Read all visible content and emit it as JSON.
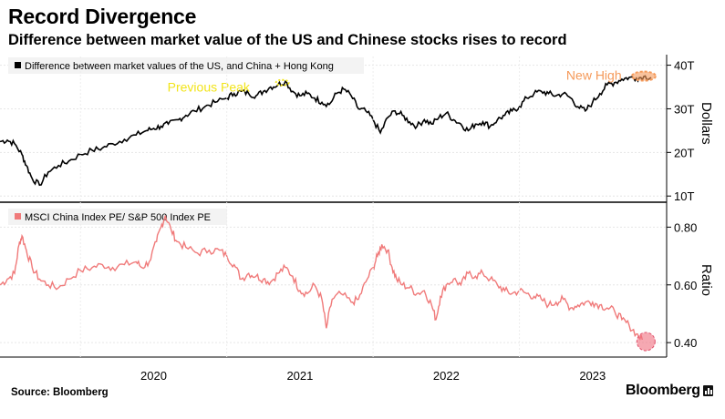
{
  "title": "Record Divergence",
  "subtitle": "Difference between market value of the US and Chinese stocks rises to record",
  "source": "Source: Bloomberg",
  "brand": "Bloomberg",
  "colors": {
    "top_series": "#000000",
    "bottom_series": "#f07a7a",
    "previous_peak": "#f2e41a",
    "new_high": "#f59a5a",
    "highlight_circle": "#f06e7e"
  },
  "chart_data": [
    {
      "type": "line",
      "title": "Difference between market values of the US, and China + Hong Kong",
      "legend": "Difference between market values of the US, and China + Hong Kong",
      "ylabel": "Dollars",
      "yticks": [
        "10T",
        "20T",
        "30T",
        "40T"
      ],
      "ytick_values": [
        10,
        20,
        30,
        40
      ],
      "ylim": [
        9,
        42
      ],
      "xlim": [
        2019.45,
        2024.0
      ],
      "annotations": [
        {
          "label": "Previous Peak",
          "x": 2021.38,
          "y": 36.0
        },
        {
          "label": "New High",
          "x": 2023.85,
          "y": 37.5
        }
      ],
      "x": [
        2019.45,
        2019.5,
        2019.55,
        2019.6,
        2019.63,
        2019.67,
        2019.72,
        2019.78,
        2019.85,
        2019.92,
        2020.0,
        2020.08,
        2020.15,
        2020.22,
        2020.3,
        2020.38,
        2020.45,
        2020.5,
        2020.55,
        2020.6,
        2020.67,
        2020.72,
        2020.78,
        2020.85,
        2020.92,
        2021.0,
        2021.05,
        2021.1,
        2021.15,
        2021.2,
        2021.25,
        2021.3,
        2021.35,
        2021.4,
        2021.45,
        2021.5,
        2021.55,
        2021.6,
        2021.65,
        2021.7,
        2021.75,
        2021.8,
        2021.85,
        2021.9,
        2021.95,
        2022.0,
        2022.05,
        2022.1,
        2022.15,
        2022.2,
        2022.25,
        2022.3,
        2022.35,
        2022.4,
        2022.45,
        2022.5,
        2022.55,
        2022.6,
        2022.65,
        2022.7,
        2022.75,
        2022.8,
        2022.85,
        2022.9,
        2022.95,
        2023.0,
        2023.05,
        2023.1,
        2023.15,
        2023.2,
        2023.25,
        2023.3,
        2023.35,
        2023.4,
        2023.45,
        2023.5,
        2023.55,
        2023.6,
        2023.65,
        2023.7,
        2023.75,
        2023.8,
        2023.85,
        2023.9
      ],
      "values": [
        22.5,
        22.8,
        22.0,
        19.5,
        17.0,
        14.0,
        12.5,
        15.5,
        17.0,
        18.0,
        19.5,
        20.5,
        21.0,
        22.0,
        23.0,
        24.0,
        25.0,
        25.5,
        26.0,
        26.5,
        27.5,
        28.5,
        29.5,
        30.5,
        31.5,
        32.5,
        33.5,
        34.0,
        33.5,
        33.0,
        34.0,
        35.0,
        35.5,
        36.3,
        34.0,
        33.0,
        33.5,
        32.5,
        31.5,
        31.0,
        33.5,
        34.5,
        33.0,
        30.0,
        29.5,
        27.5,
        24.5,
        28.0,
        29.5,
        28.5,
        27.0,
        26.0,
        27.5,
        26.5,
        28.0,
        29.0,
        27.5,
        26.5,
        25.0,
        26.5,
        27.0,
        26.0,
        27.5,
        28.5,
        29.5,
        30.5,
        32.5,
        33.5,
        34.0,
        33.5,
        33.0,
        33.5,
        32.5,
        30.5,
        29.5,
        31.5,
        33.5,
        35.5,
        36.0,
        36.8,
        37.2,
        37.0,
        37.4,
        37.2
      ]
    },
    {
      "type": "line",
      "title": "MSCI China Index PE/ S&P 500 Index PE",
      "legend": "MSCI China Index PE/ S&P 500 Index PE",
      "ylabel": "Ratio",
      "yticks": [
        "0.40",
        "0.60",
        "0.80"
      ],
      "ytick_values": [
        0.4,
        0.6,
        0.8
      ],
      "ylim": [
        0.35,
        0.88
      ],
      "xlim": [
        2019.45,
        2024.0
      ],
      "xticks": [
        "2020",
        "2021",
        "2022",
        "2023"
      ],
      "xtick_values": [
        2020.0,
        2021.0,
        2022.0,
        2023.0
      ],
      "x": [
        2019.45,
        2019.5,
        2019.55,
        2019.58,
        2019.6,
        2019.63,
        2019.67,
        2019.72,
        2019.78,
        2019.85,
        2019.92,
        2020.0,
        2020.08,
        2020.15,
        2020.22,
        2020.3,
        2020.38,
        2020.42,
        2020.47,
        2020.52,
        2020.55,
        2020.58,
        2020.62,
        2020.66,
        2020.72,
        2020.8,
        2020.88,
        2020.95,
        2021.0,
        2021.05,
        2021.1,
        2021.15,
        2021.2,
        2021.25,
        2021.3,
        2021.35,
        2021.4,
        2021.45,
        2021.5,
        2021.55,
        2021.6,
        2021.65,
        2021.68,
        2021.72,
        2021.78,
        2021.85,
        2021.9,
        2021.95,
        2022.0,
        2022.03,
        2022.06,
        2022.1,
        2022.13,
        2022.16,
        2022.2,
        2022.25,
        2022.3,
        2022.35,
        2022.4,
        2022.43,
        2022.46,
        2022.5,
        2022.55,
        2022.6,
        2022.65,
        2022.7,
        2022.75,
        2022.8,
        2022.85,
        2022.9,
        2022.95,
        2023.0,
        2023.05,
        2023.1,
        2023.15,
        2023.2,
        2023.25,
        2023.3,
        2023.35,
        2023.4,
        2023.45,
        2023.5,
        2023.55,
        2023.6,
        2023.65,
        2023.7,
        2023.75,
        2023.8,
        2023.84
      ],
      "values": [
        0.6,
        0.62,
        0.64,
        0.74,
        0.77,
        0.72,
        0.66,
        0.62,
        0.6,
        0.59,
        0.62,
        0.65,
        0.66,
        0.67,
        0.66,
        0.67,
        0.68,
        0.66,
        0.68,
        0.75,
        0.8,
        0.84,
        0.79,
        0.75,
        0.73,
        0.71,
        0.72,
        0.72,
        0.7,
        0.67,
        0.62,
        0.64,
        0.63,
        0.62,
        0.61,
        0.64,
        0.66,
        0.63,
        0.58,
        0.57,
        0.6,
        0.55,
        0.45,
        0.55,
        0.57,
        0.54,
        0.55,
        0.61,
        0.66,
        0.7,
        0.74,
        0.72,
        0.66,
        0.62,
        0.6,
        0.59,
        0.57,
        0.58,
        0.53,
        0.48,
        0.56,
        0.6,
        0.62,
        0.6,
        0.64,
        0.63,
        0.64,
        0.62,
        0.6,
        0.58,
        0.57,
        0.58,
        0.57,
        0.56,
        0.55,
        0.53,
        0.54,
        0.55,
        0.52,
        0.53,
        0.54,
        0.54,
        0.53,
        0.52,
        0.51,
        0.48,
        0.46,
        0.43,
        0.41
      ]
    }
  ]
}
